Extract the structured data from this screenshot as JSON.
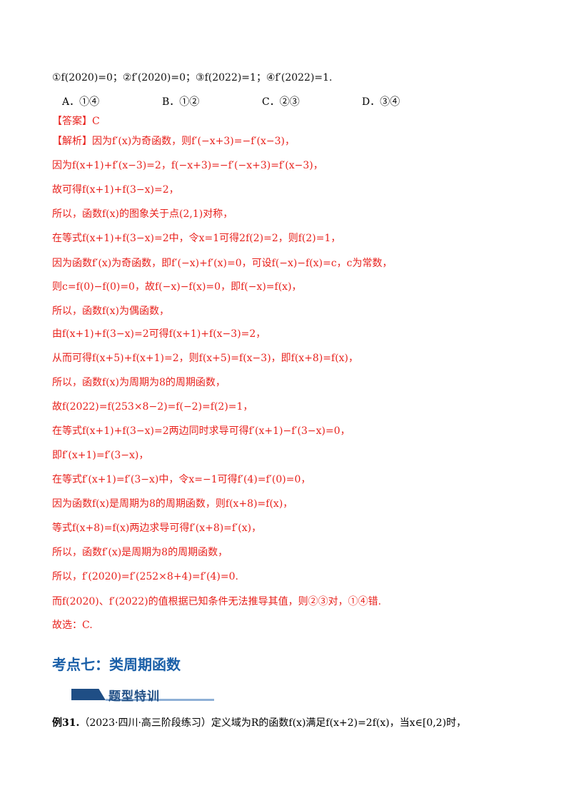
{
  "statements": "①f(2020)=0；②f′(2020)=0；③f(2022)=1；④f′(2022)=1.",
  "choices": [
    {
      "letter": "A．",
      "text": "①④"
    },
    {
      "letter": "B．",
      "text": "①②"
    },
    {
      "letter": "C．",
      "text": "②③"
    },
    {
      "letter": "D．",
      "text": "③④"
    }
  ],
  "answer": "【答案】C",
  "solution_label": "【解析】",
  "solution_lines": [
    "因为f′(x)为奇函数，则f′(−x+3)=−f′(x−3)，",
    "因为f(x+1)+f′(x−3)=2，f(−x+3)=−f′(−x+3)=f′(x−3)，",
    "故可得f(x+1)+f(3−x)=2，",
    "所以，函数f(x)的图象关于点(2,1)对称，",
    "在等式f(x+1)+f(3−x)=2中，令x=1可得2f(2)=2，则f(2)=1，",
    "因为函数f′(x)为奇函数，即f′(−x)+f′(x)=0，可设f(−x)−f(x)=c，c为常数，",
    "则c=f(0)−f(0)=0，故f(−x)−f(x)=0，即f(−x)=f(x)，",
    "所以，函数f(x)为偶函数，",
    "由f(x+1)+f(3−x)=2可得f(x+1)+f(x−3)=2，",
    "从而可得f(x+5)+f(x+1)=2，则f(x+5)=f(x−3)，即f(x+8)=f(x)，",
    "所以，函数f(x)为周期为8的周期函数，",
    "故f(2022)=f(253×8−2)=f(−2)=f(2)=1，",
    "在等式f(x+1)+f(3−x)=2两边同时求导可得f′(x+1)−f′(3−x)=0，",
    "即f′(x+1)=f′(3−x)，",
    "在等式f′(x+1)=f′(3−x)中，令x=−1可得f′(4)=f′(0)=0，",
    "因为函数f(x)是周期为8的周期函数，则f(x+8)=f(x)，",
    "等式f(x+8)=f(x)两边求导可得f′(x+8)=f′(x)，",
    "所以，函数f′(x)是周期为8的周期函数，",
    "所以，f′(2020)=f′(252×8+4)=f′(4)=0.",
    "而f(2020)、f′(2022)的值根据已知条件无法推导其值，则②③对，①④错.",
    "故选：C."
  ],
  "section_heading": "考点七：类周期函数",
  "banner_text": "题型特训",
  "example_label": "例31.",
  "example_text": "（2023·四川·高三阶段练习）定义域为R的函数f(x)满足f(x+2)=2f(x)，当x∈[0,2)时，",
  "colors": {
    "answer_red": "#e8211c",
    "heading_blue": "#1a5fa8",
    "banner_navy": "#1f4e85"
  }
}
